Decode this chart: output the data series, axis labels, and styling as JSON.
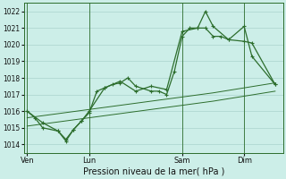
{
  "bg_color": "#cceee8",
  "grid_color": "#aad4ce",
  "line_color": "#2d6e2d",
  "marker_color": "#2d6e2d",
  "title": "Pression niveau de la mer( hPa )",
  "xlabel_day_labels": [
    "Ven",
    "Lun",
    "Sam",
    "Dim"
  ],
  "xlabel_day_positions": [
    0,
    4,
    10,
    14
  ],
  "ylim": [
    1013.5,
    1022.5
  ],
  "yticks": [
    1014,
    1015,
    1016,
    1017,
    1018,
    1019,
    1020,
    1021,
    1022
  ],
  "vline_positions": [
    0,
    4,
    10,
    14
  ],
  "xlim": [
    -0.2,
    16.5
  ],
  "series1_x": [
    0,
    0.5,
    1,
    2,
    2.5,
    3,
    3.5,
    4,
    4.5,
    5,
    5.5,
    6,
    6.5,
    7,
    8,
    8.5,
    9,
    9.5,
    10,
    10.5,
    11,
    11.5,
    12,
    12.5,
    13,
    14,
    14.5,
    16
  ],
  "series1_y": [
    1016.0,
    1015.6,
    1015.0,
    1014.8,
    1014.3,
    1014.9,
    1015.4,
    1015.9,
    1017.2,
    1017.4,
    1017.6,
    1017.7,
    1018.0,
    1017.5,
    1017.2,
    1017.2,
    1017.0,
    1018.4,
    1020.5,
    1021.0,
    1021.0,
    1021.0,
    1020.5,
    1020.5,
    1020.3,
    1020.2,
    1020.1,
    1017.6
  ],
  "series2_x": [
    0,
    1,
    2,
    2.5,
    3,
    3.5,
    4,
    5,
    6,
    7,
    8,
    9,
    10,
    11,
    11.5,
    12,
    13,
    14,
    14.5,
    16
  ],
  "series2_y": [
    1016.0,
    1015.3,
    1014.8,
    1014.2,
    1014.9,
    1015.4,
    1016.0,
    1017.4,
    1017.8,
    1017.2,
    1017.5,
    1017.3,
    1020.8,
    1021.0,
    1022.0,
    1021.1,
    1020.3,
    1021.1,
    1019.3,
    1017.6
  ],
  "series3_x": [
    0,
    4,
    8,
    12,
    16
  ],
  "series3_y": [
    1015.6,
    1016.1,
    1016.6,
    1017.1,
    1017.7
  ],
  "series4_x": [
    0,
    4,
    8,
    12,
    16
  ],
  "series4_y": [
    1015.1,
    1015.6,
    1016.1,
    1016.6,
    1017.2
  ]
}
